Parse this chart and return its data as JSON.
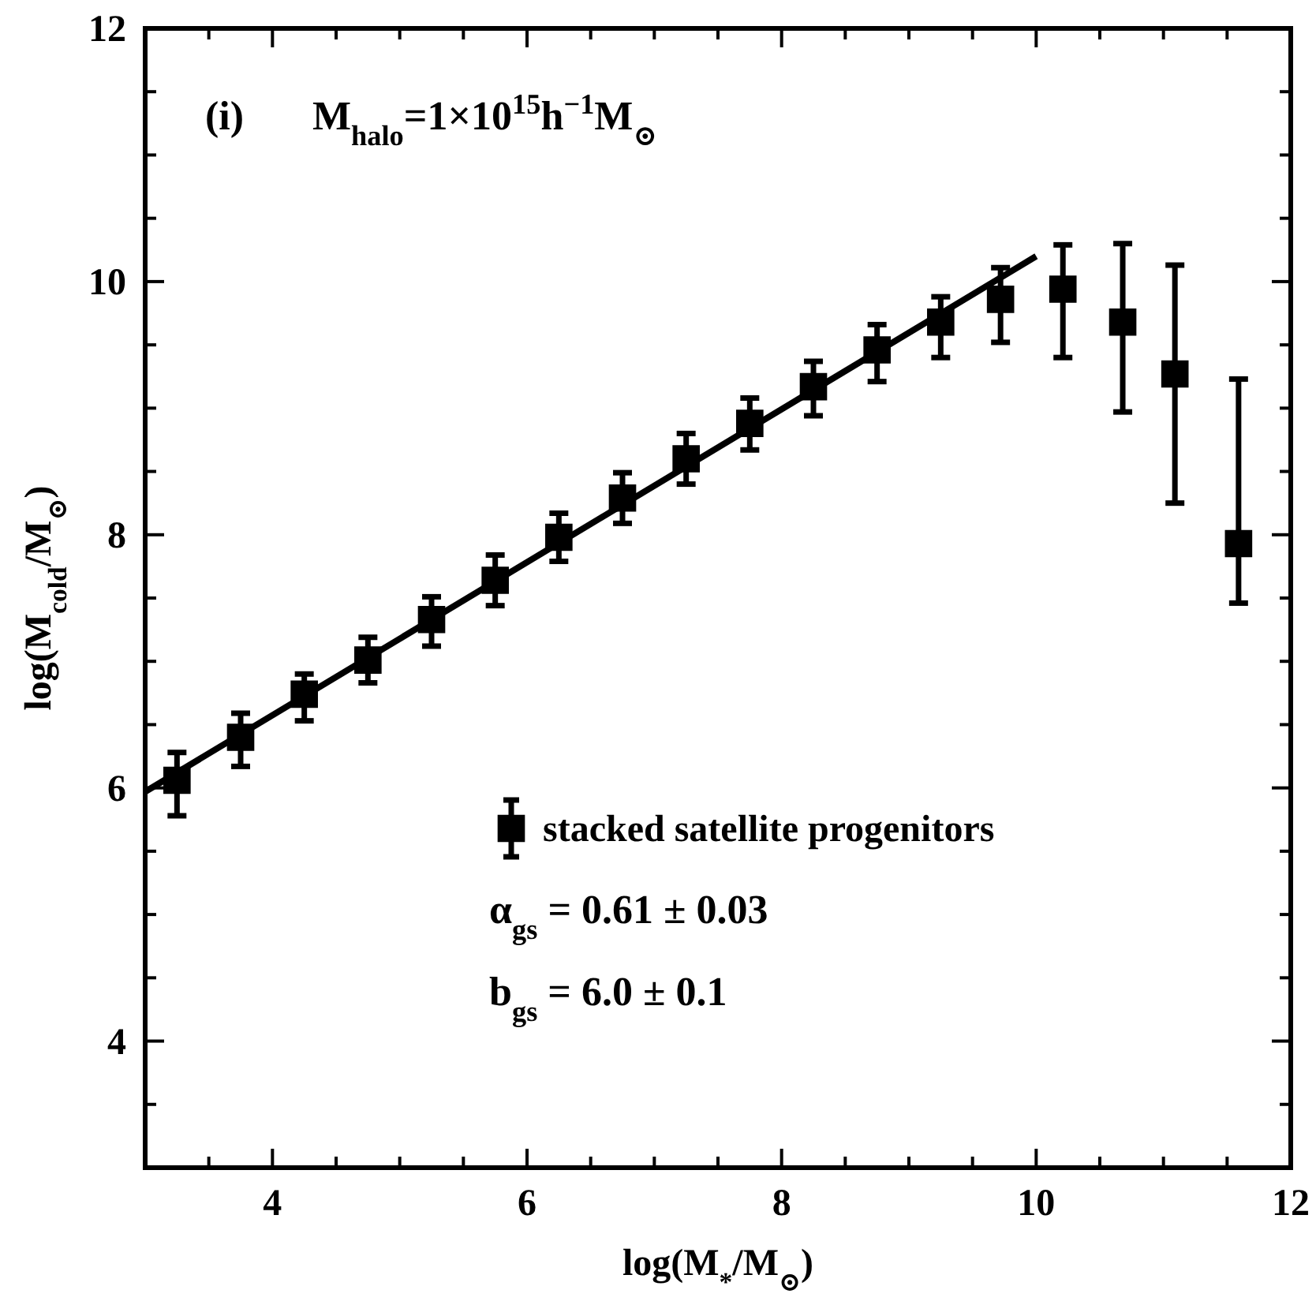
{
  "chart_data": {
    "type": "scatter",
    "xlabel": "log(M$_{*}$/M$_{⊙}$)",
    "ylabel": "log(M$_{cold}$/M$_{⊙}$)",
    "annotations": [
      "(i)",
      "M$_{halo}$=1×10$^{15}$h$^{−1}$M$_{⊙}$",
      "α$_{gs}$ = 0.61 ± 0.03",
      "b$_{gs}$ = 6.0 ± 0.1"
    ],
    "xlim": [
      3,
      12
    ],
    "ylim": [
      3,
      12
    ],
    "xticks": [
      {
        "value": 3.5,
        "label": null
      },
      4,
      {
        "value": 4.5,
        "label": null
      },
      {
        "value": 5,
        "label": null
      },
      {
        "value": 5.5,
        "label": null
      },
      6,
      {
        "value": 6.5,
        "label": null
      },
      {
        "value": 7,
        "label": null
      },
      {
        "value": 7.5,
        "label": null
      },
      8,
      {
        "value": 8.5,
        "label": null
      },
      {
        "value": 9,
        "label": null
      },
      {
        "value": 9.5,
        "label": null
      },
      10,
      {
        "value": 10.5,
        "label": null
      },
      {
        "value": 11,
        "label": null
      },
      {
        "value": 11.5,
        "label": null
      },
      12
    ],
    "yticks": [
      {
        "value": 3.5,
        "label": null
      },
      4,
      {
        "value": 4.5,
        "label": null
      },
      {
        "value": 5,
        "label": null
      },
      {
        "value": 5.5,
        "label": null
      },
      6,
      {
        "value": 6.5,
        "label": null
      },
      {
        "value": 7,
        "label": null
      },
      {
        "value": 7.5,
        "label": null
      },
      8,
      {
        "value": 8.5,
        "label": null
      },
      {
        "value": 9,
        "label": null
      },
      {
        "value": 9.5,
        "label": null
      },
      10,
      {
        "value": 10.5,
        "label": null
      },
      {
        "value": 11,
        "label": null
      },
      {
        "value": 11.5,
        "label": null
      },
      12
    ],
    "legend": "bottom right",
    "grid": false,
    "series": [
      {
        "name": "stacked satellite progenitors",
        "marker": "square",
        "color": "#000000",
        "x": [
          3.25,
          3.75,
          4.25,
          4.75,
          5.25,
          5.75,
          6.25,
          6.75,
          7.25,
          7.75,
          8.25,
          8.75,
          9.25,
          9.72,
          10.21,
          10.68,
          11.09,
          11.59
        ],
        "values": [
          6.06,
          6.4,
          6.74,
          7.01,
          7.33,
          7.64,
          7.98,
          8.29,
          8.6,
          8.88,
          9.17,
          9.46,
          9.68,
          9.86,
          9.94,
          9.68,
          9.27,
          7.93
        ],
        "errors": [
          [
            5.78,
            6.28
          ],
          [
            6.17,
            6.59
          ],
          [
            6.53,
            6.9
          ],
          [
            6.83,
            7.19
          ],
          [
            7.12,
            7.51
          ],
          [
            7.44,
            7.84
          ],
          [
            7.79,
            8.17
          ],
          [
            8.09,
            8.49
          ],
          [
            8.4,
            8.8
          ],
          [
            8.67,
            9.08
          ],
          [
            8.94,
            9.37
          ],
          [
            9.21,
            9.66
          ],
          [
            9.4,
            9.88
          ],
          [
            9.52,
            10.11
          ],
          [
            9.4,
            10.29
          ],
          [
            8.97,
            10.3
          ],
          [
            8.25,
            10.13
          ],
          [
            7.46,
            9.23
          ]
        ]
      },
      {
        "type": "line",
        "color": "#000000",
        "line_style": "solid",
        "x": [
          3,
          10
        ],
        "values": [
          5.97,
          10.2
        ]
      }
    ]
  }
}
